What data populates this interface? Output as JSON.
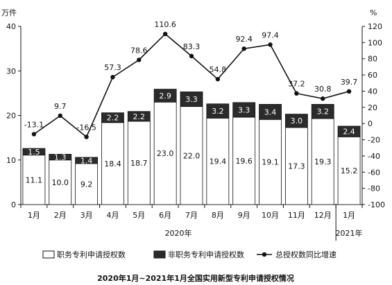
{
  "chart_data": {
    "type": "bar",
    "title": "2020年1月~2021年1月全国实用新型专利申请授权情况",
    "left_axis_unit": "万件",
    "right_axis_unit": "%",
    "categories": [
      "1月",
      "2月",
      "3月",
      "4月",
      "5月",
      "6月",
      "7月",
      "8月",
      "9月",
      "10月",
      "11月",
      "12月",
      "1月"
    ],
    "year_groups": [
      {
        "label": "2020年",
        "from": 0,
        "to": 11
      },
      {
        "label": "2021年",
        "from": 12,
        "to": 12
      }
    ],
    "stacked": true,
    "ylim_left": [
      0,
      40
    ],
    "yticks_left": [
      0,
      10,
      20,
      30,
      40
    ],
    "ylim_right": [
      -100,
      120
    ],
    "yticks_right": [
      -100,
      -80,
      -60,
      -40,
      -20,
      0,
      20,
      40,
      60,
      80,
      100,
      120
    ],
    "series": [
      {
        "name": "职务专利申请授权数",
        "kind": "bar",
        "color": "#ffffff",
        "values": [
          11.1,
          10.0,
          9.2,
          18.4,
          18.7,
          23.0,
          22.0,
          19.4,
          19.6,
          19.1,
          17.3,
          19.3,
          15.2
        ]
      },
      {
        "name": "非职务专利申请授权数",
        "kind": "bar",
        "color": "#2b2b2b",
        "values": [
          1.5,
          1.3,
          1.4,
          2.2,
          2.2,
          2.9,
          3.3,
          3.2,
          3.3,
          3.4,
          3.0,
          3.2,
          2.4
        ]
      },
      {
        "name": "总授权数同比增速",
        "kind": "line",
        "axis": "right",
        "color": "#111111",
        "values": [
          -13.1,
          9.7,
          -16.5,
          57.3,
          78.6,
          110.6,
          83.3,
          54.8,
          92.4,
          97.4,
          37.2,
          30.8,
          39.7
        ],
        "labels": [
          "-13.1",
          "9.7",
          "-16.5",
          "57.3",
          "78.6",
          "110.6",
          "83.3",
          "54.8",
          "92.4",
          "97.4",
          "37.2",
          "30.8",
          "39.7"
        ]
      }
    ],
    "legend_position": "bottom"
  }
}
